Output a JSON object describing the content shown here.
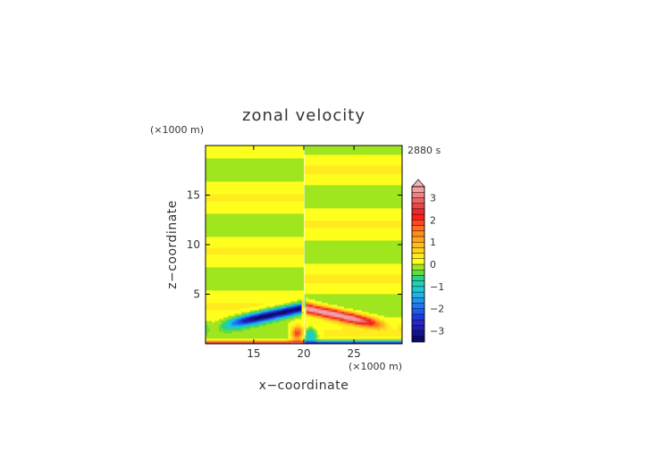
{
  "chart_data": {
    "type": "heatmap",
    "title": "zonal velocity",
    "time_label": "2880 s",
    "xlabel": "x−coordinate",
    "ylabel": "z−coordinate",
    "x_unit": "(×1000 m)",
    "y_unit": "(×1000 m)",
    "xlim": [
      10.2,
      29.8
    ],
    "ylim": [
      0,
      20
    ],
    "x_ticks": [
      15,
      20,
      25
    ],
    "y_ticks": [
      5,
      10,
      15
    ],
    "x_tick_labels": [
      "15",
      "20",
      "25"
    ],
    "y_tick_labels": [
      "5",
      "10",
      "15"
    ],
    "colorbar": {
      "levels": [
        -3.5,
        -3.25,
        -3,
        -2.75,
        -2.5,
        -2.25,
        -2,
        -1.75,
        -1.5,
        -1.25,
        -1,
        -0.75,
        -0.5,
        -0.25,
        0,
        0.25,
        0.5,
        0.75,
        1,
        1.25,
        1.5,
        1.75,
        2,
        2.25,
        2.5,
        2.75,
        3,
        3.25,
        3.5
      ],
      "colors": [
        "#0a0a6e",
        "#14148c",
        "#1e1eaa",
        "#2828c8",
        "#1e3cdc",
        "#1e5af0",
        "#1e78f0",
        "#1e96f0",
        "#1eb4e6",
        "#1ec8d2",
        "#1ed2b4",
        "#28d28c",
        "#64dc3c",
        "#a0e61e",
        "#ffff1e",
        "#ffeb1e",
        "#ffd21e",
        "#ffbe1e",
        "#ffa51e",
        "#ff8c1e",
        "#ff6e1e",
        "#ff461e",
        "#ff1e1e",
        "#ee2828",
        "#e64646",
        "#ee6464",
        "#f08282",
        "#f5a0a0"
      ],
      "tick_values": [
        -3,
        -2,
        -1,
        0,
        1,
        2,
        3
      ],
      "tick_labels": [
        "−3",
        "−2",
        "−1",
        "0",
        "1",
        "2",
        "3"
      ],
      "extend": "max"
    },
    "field_description": "alternating +/- zonal velocity bands; strong jets near surface below 4 km, negative left of x=20, positive right of x=20"
  }
}
